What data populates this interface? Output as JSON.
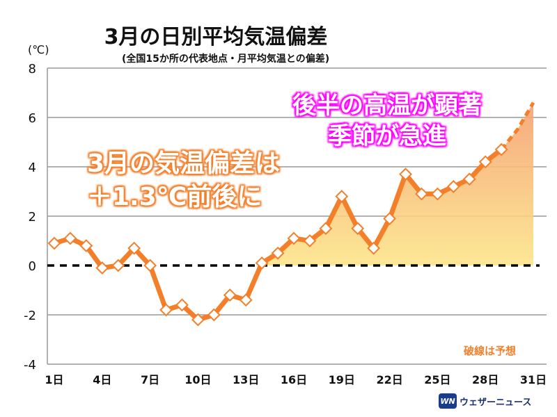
{
  "chart_data": {
    "type": "line",
    "title": "3月の日別平均気温偏差",
    "subtitle": "(全国15か所の代表地点・月平均気温との偏差)",
    "ylabel": "(℃)",
    "ylim": [
      -4,
      8
    ],
    "yticks": [
      "-4",
      "-2",
      "0",
      "2",
      "4",
      "6",
      "8"
    ],
    "yticks_values": [
      -4,
      -2,
      0,
      2,
      4,
      6,
      8
    ],
    "grid": true,
    "x": [
      1,
      2,
      3,
      4,
      5,
      6,
      7,
      8,
      9,
      10,
      11,
      12,
      13,
      14,
      15,
      16,
      17,
      18,
      19,
      20,
      21,
      22,
      23,
      24,
      25,
      26,
      27,
      28,
      29,
      30,
      31
    ],
    "xtick_labels": [
      "1日",
      "4日",
      "7日",
      "10日",
      "13日",
      "16日",
      "19日",
      "22日",
      "25日",
      "28日",
      "31日"
    ],
    "xtick_values": [
      1,
      4,
      7,
      10,
      13,
      16,
      19,
      22,
      25,
      28,
      31
    ],
    "series": [
      {
        "values": [
          0.9,
          1.1,
          0.8,
          -0.1,
          0.0,
          0.7,
          0.0,
          -1.8,
          -1.6,
          -2.2,
          -2.0,
          -1.2,
          -1.4,
          0.1,
          0.5,
          1.1,
          1.0,
          1.5,
          2.8,
          1.5,
          0.7,
          1.9,
          3.7,
          2.9,
          2.9,
          3.2,
          3.5,
          4.2,
          4.7,
          5.5,
          6.6
        ],
        "observed_through_day": 29,
        "forecast_from_day": 29
      }
    ],
    "annotations": [
      "後半の高温が顕著",
      "季節が急進",
      "3月の気温偏差は",
      "＋1.3℃前後に",
      "破線は予想"
    ],
    "colors": {
      "line": "#f37f2a",
      "fill_top": "#f5a070",
      "fill_bottom": "#fde58a",
      "zero_line": "#000000",
      "pink": "#ff00ff"
    }
  },
  "logo": {
    "text": "ウェザーニュース",
    "mark": "WN"
  }
}
